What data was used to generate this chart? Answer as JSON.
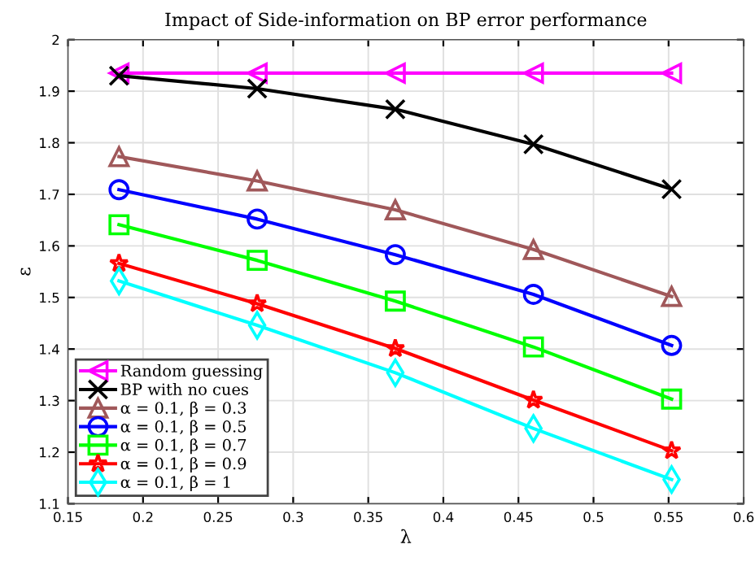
{
  "chart_data": {
    "type": "line",
    "title": "Impact of Side-information on BP error performance",
    "xlabel": "λ",
    "ylabel": "ε",
    "x": [
      0.184,
      0.276,
      0.368,
      0.46,
      0.552
    ],
    "series": [
      {
        "name": "Random guessing",
        "color": "#ff00ff",
        "marker": "triangle_left",
        "values": [
          1.935,
          1.935,
          1.935,
          1.935,
          1.935
        ]
      },
      {
        "name": "BP with no cues",
        "color": "#000000",
        "marker": "cross",
        "values": [
          1.93,
          1.905,
          1.865,
          1.797,
          1.71
        ]
      },
      {
        "name": "α = 0.1, β = 0.3",
        "color": "#a0585a",
        "marker": "triangle",
        "values": [
          1.773,
          1.726,
          1.67,
          1.593,
          1.502
        ]
      },
      {
        "name": "α = 0.1, β = 0.5",
        "color": "#0000ff",
        "marker": "circle",
        "values": [
          1.709,
          1.652,
          1.583,
          1.506,
          1.407
        ]
      },
      {
        "name": "α = 0.1, β = 0.7",
        "color": "#00ff00",
        "marker": "square",
        "values": [
          1.641,
          1.572,
          1.493,
          1.404,
          1.303
        ]
      },
      {
        "name": "α = 0.1, β = 0.9",
        "color": "#ff0000",
        "marker": "star",
        "values": [
          1.566,
          1.488,
          1.401,
          1.301,
          1.203
        ]
      },
      {
        "name": "α = 0.1, β = 1",
        "color": "#00ffff",
        "marker": "diamond",
        "values": [
          1.532,
          1.446,
          1.354,
          1.246,
          1.147
        ]
      }
    ],
    "xlim": [
      0.15,
      0.6
    ],
    "xticks": [
      0.15,
      0.2,
      0.25,
      0.3,
      0.35,
      0.4,
      0.45,
      0.5,
      0.55,
      0.6
    ],
    "ylim": [
      1.1,
      2
    ],
    "yticks": [
      1.1,
      1.2,
      1.3,
      1.4,
      1.5,
      1.6,
      1.7,
      1.8,
      1.9,
      2
    ],
    "grid": true,
    "legend": "bottom left",
    "line_style": "solid"
  }
}
